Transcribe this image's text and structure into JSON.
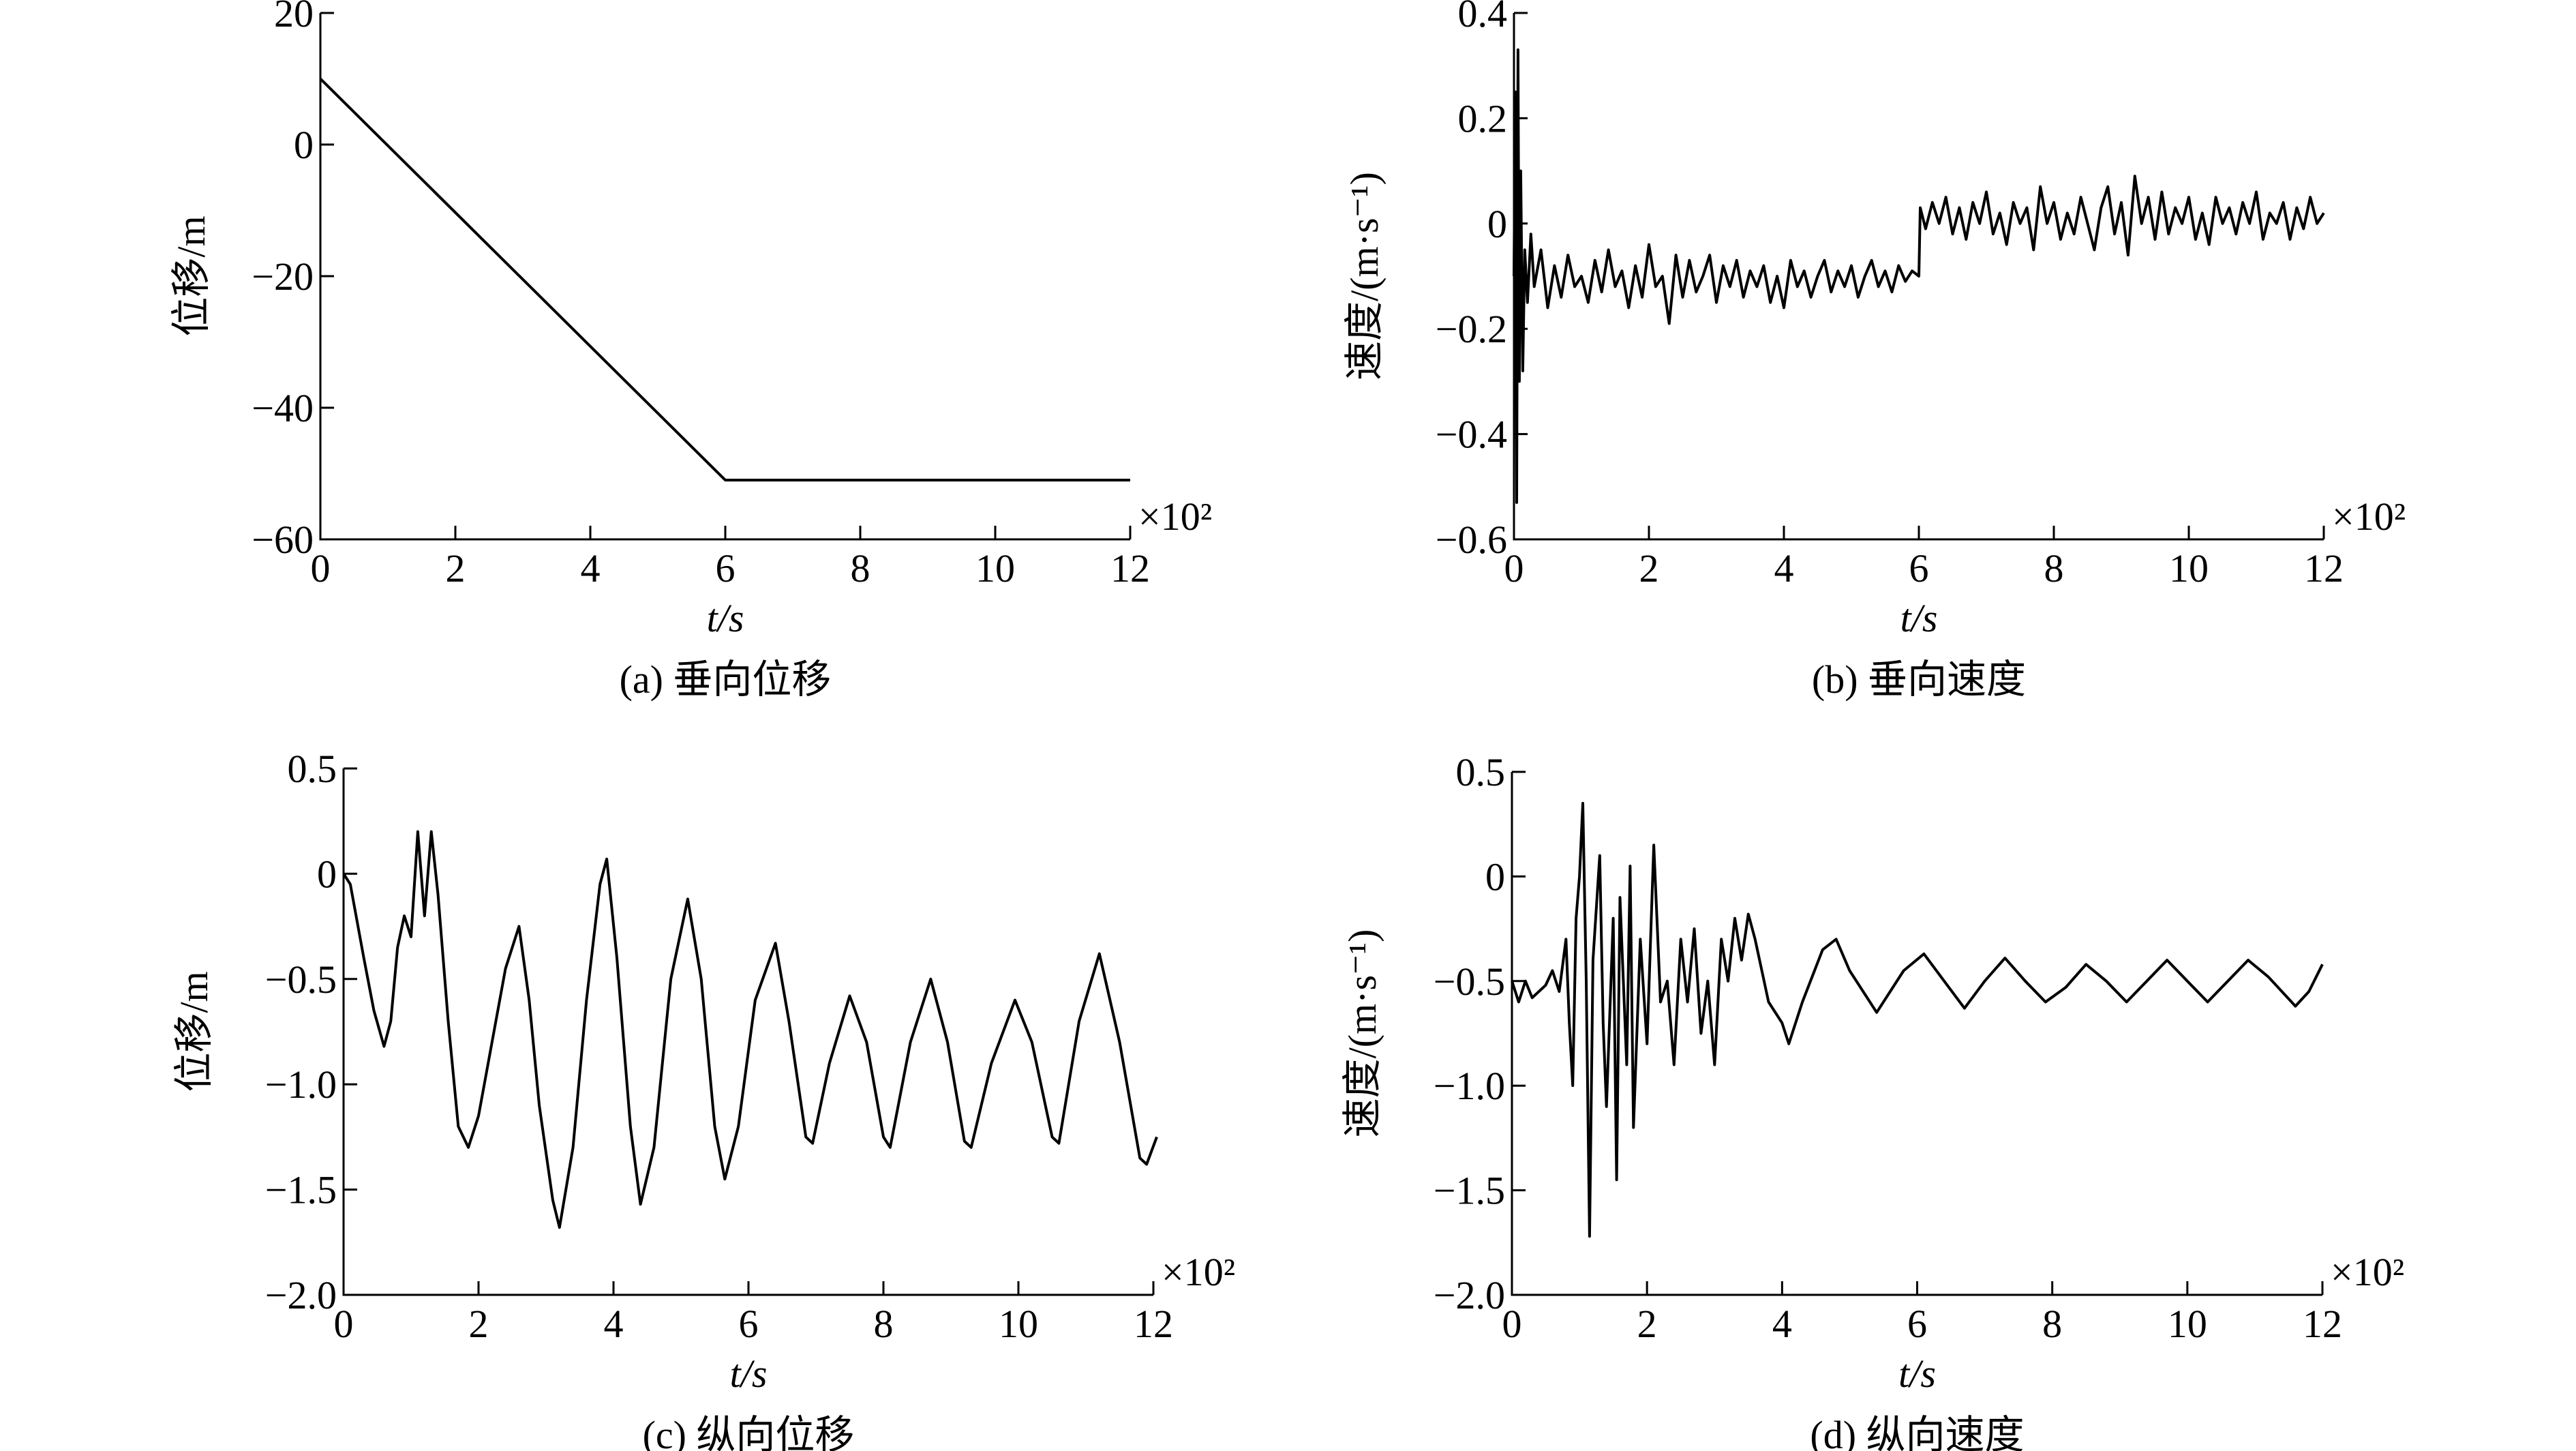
{
  "chart_data": [
    {
      "type": "line",
      "title": "(a) 垂向位移",
      "xlabel": "t/s",
      "ylabel": "位移/m",
      "x_multiplier": "×10²",
      "color": "#000000",
      "xlim": [
        0,
        12
      ],
      "ylim": [
        -60,
        20
      ],
      "xticks": [
        0,
        2,
        4,
        6,
        8,
        10,
        12
      ],
      "yticks": [
        {
          "value": -60,
          "label": "−60"
        },
        {
          "value": -40,
          "label": "−40"
        },
        {
          "value": -20,
          "label": "−20"
        },
        0,
        20
      ],
      "x": [
        0,
        6,
        12
      ],
      "values": [
        10,
        -51,
        -51
      ]
    },
    {
      "type": "line",
      "title": "(b) 垂向速度",
      "xlabel": "t/s",
      "ylabel": "速度/(m·s⁻¹)",
      "x_multiplier": "×10²",
      "color": "#000000",
      "xlim": [
        0,
        12
      ],
      "ylim": [
        -0.6,
        0.4
      ],
      "xticks": [
        0,
        2,
        4,
        6,
        8,
        10,
        12
      ],
      "yticks": [
        {
          "value": -0.6,
          "label": "−0.6"
        },
        {
          "value": -0.4,
          "label": "−0.4"
        },
        {
          "value": -0.2,
          "label": "−0.2"
        },
        0,
        0.2,
        0.4
      ],
      "x": [
        0,
        0.02,
        0.04,
        0.06,
        0.08,
        0.1,
        0.13,
        0.16,
        0.2,
        0.25,
        0.3,
        0.4,
        0.5,
        0.6,
        0.7,
        0.8,
        0.9,
        1.0,
        1.1,
        1.2,
        1.3,
        1.4,
        1.5,
        1.6,
        1.7,
        1.8,
        1.9,
        2.0,
        2.1,
        2.2,
        2.3,
        2.4,
        2.5,
        2.6,
        2.7,
        2.8,
        2.9,
        3.0,
        3.1,
        3.2,
        3.3,
        3.4,
        3.5,
        3.6,
        3.7,
        3.8,
        3.9,
        4.0,
        4.1,
        4.2,
        4.3,
        4.4,
        4.5,
        4.6,
        4.7,
        4.8,
        4.9,
        5.0,
        5.1,
        5.2,
        5.3,
        5.4,
        5.5,
        5.6,
        5.7,
        5.8,
        5.9,
        6.0,
        6.02,
        6.1,
        6.2,
        6.3,
        6.4,
        6.5,
        6.6,
        6.7,
        6.8,
        6.9,
        7.0,
        7.1,
        7.2,
        7.3,
        7.4,
        7.5,
        7.6,
        7.7,
        7.8,
        7.9,
        8.0,
        8.1,
        8.2,
        8.3,
        8.4,
        8.5,
        8.6,
        8.7,
        8.8,
        8.9,
        9.0,
        9.1,
        9.2,
        9.3,
        9.4,
        9.5,
        9.6,
        9.7,
        9.8,
        9.9,
        10.0,
        10.1,
        10.2,
        10.3,
        10.4,
        10.5,
        10.6,
        10.7,
        10.8,
        10.9,
        11.0,
        11.1,
        11.2,
        11.3,
        11.4,
        11.5,
        11.6,
        11.7,
        11.8,
        11.9,
        12.0
      ],
      "values": [
        -0.1,
        0.25,
        -0.53,
        0.33,
        -0.3,
        0.1,
        -0.28,
        -0.05,
        -0.15,
        -0.02,
        -0.12,
        -0.05,
        -0.16,
        -0.08,
        -0.14,
        -0.06,
        -0.12,
        -0.1,
        -0.15,
        -0.07,
        -0.13,
        -0.05,
        -0.12,
        -0.09,
        -0.16,
        -0.08,
        -0.14,
        -0.04,
        -0.12,
        -0.1,
        -0.19,
        -0.06,
        -0.14,
        -0.07,
        -0.13,
        -0.1,
        -0.06,
        -0.15,
        -0.08,
        -0.12,
        -0.07,
        -0.14,
        -0.09,
        -0.12,
        -0.08,
        -0.15,
        -0.1,
        -0.16,
        -0.07,
        -0.12,
        -0.09,
        -0.14,
        -0.1,
        -0.07,
        -0.13,
        -0.09,
        -0.12,
        -0.08,
        -0.14,
        -0.1,
        -0.07,
        -0.12,
        -0.09,
        -0.13,
        -0.08,
        -0.11,
        -0.09,
        -0.1,
        0.03,
        -0.01,
        0.04,
        0.0,
        0.05,
        -0.02,
        0.03,
        -0.03,
        0.04,
        0.0,
        0.06,
        -0.02,
        0.02,
        -0.04,
        0.04,
        0.0,
        0.03,
        -0.05,
        0.07,
        0.0,
        0.04,
        -0.03,
        0.02,
        -0.02,
        0.05,
        0.0,
        -0.05,
        0.03,
        0.07,
        -0.02,
        0.04,
        -0.06,
        0.09,
        0.0,
        0.05,
        -0.03,
        0.06,
        -0.02,
        0.03,
        0.0,
        0.05,
        -0.03,
        0.02,
        -0.04,
        0.05,
        0.0,
        0.03,
        -0.02,
        0.04,
        0.0,
        0.06,
        -0.03,
        0.02,
        0.0,
        0.04,
        -0.03,
        0.03,
        -0.01,
        0.05,
        0.0,
        0.02
      ]
    },
    {
      "type": "line",
      "title": "(c) 纵向位移",
      "xlabel": "t/s",
      "ylabel": "位移/m",
      "x_multiplier": "×10²",
      "color": "#000000",
      "xlim": [
        0,
        12
      ],
      "ylim": [
        -2,
        0.5
      ],
      "xticks": [
        0,
        2,
        4,
        6,
        8,
        10,
        12
      ],
      "yticks": [
        {
          "value": -2,
          "label": "−2.0"
        },
        {
          "value": -1.5,
          "label": "−1.5"
        },
        {
          "value": -1,
          "label": "−1.0"
        },
        {
          "value": -0.5,
          "label": "−0.5"
        },
        0,
        0.5
      ],
      "x": [
        0,
        0.1,
        0.3,
        0.45,
        0.6,
        0.7,
        0.8,
        0.9,
        1.0,
        1.1,
        1.2,
        1.3,
        1.4,
        1.55,
        1.7,
        1.85,
        2.0,
        2.2,
        2.4,
        2.6,
        2.75,
        2.9,
        3.1,
        3.2,
        3.4,
        3.6,
        3.8,
        3.9,
        4.05,
        4.25,
        4.4,
        4.6,
        4.85,
        5.1,
        5.3,
        5.5,
        5.65,
        5.85,
        6.1,
        6.4,
        6.6,
        6.85,
        6.95,
        7.2,
        7.5,
        7.75,
        8.0,
        8.1,
        8.4,
        8.7,
        8.95,
        9.2,
        9.3,
        9.6,
        9.95,
        10.2,
        10.5,
        10.6,
        10.9,
        11.2,
        11.5,
        11.8,
        11.9,
        12.05
      ],
      "values": [
        0,
        -0.05,
        -0.4,
        -0.65,
        -0.82,
        -0.7,
        -0.35,
        -0.2,
        -0.3,
        0.2,
        -0.2,
        0.2,
        -0.1,
        -0.7,
        -1.2,
        -1.3,
        -1.15,
        -0.8,
        -0.45,
        -0.25,
        -0.6,
        -1.1,
        -1.55,
        -1.68,
        -1.3,
        -0.6,
        -0.05,
        0.07,
        -0.4,
        -1.2,
        -1.57,
        -1.3,
        -0.5,
        -0.12,
        -0.5,
        -1.2,
        -1.45,
        -1.2,
        -0.6,
        -0.33,
        -0.7,
        -1.25,
        -1.28,
        -0.9,
        -0.58,
        -0.8,
        -1.25,
        -1.3,
        -0.8,
        -0.5,
        -0.8,
        -1.27,
        -1.3,
        -0.9,
        -0.6,
        -0.8,
        -1.25,
        -1.28,
        -0.7,
        -0.38,
        -0.8,
        -1.35,
        -1.38,
        -1.25
      ]
    },
    {
      "type": "line",
      "title": "(d) 纵向速度",
      "xlabel": "t/s",
      "ylabel": "速度/(m·s⁻¹)",
      "x_multiplier": "×10²",
      "color": "#000000",
      "xlim": [
        0,
        12
      ],
      "ylim": [
        -2,
        0.5
      ],
      "xticks": [
        0,
        2,
        4,
        6,
        8,
        10,
        12
      ],
      "yticks": [
        {
          "value": -2,
          "label": "−2.0"
        },
        {
          "value": -1.5,
          "label": "−1.5"
        },
        {
          "value": -1,
          "label": "−1.0"
        },
        {
          "value": -0.5,
          "label": "−0.5"
        },
        0,
        0.5
      ],
      "x": [
        0,
        0.1,
        0.2,
        0.3,
        0.5,
        0.6,
        0.7,
        0.8,
        0.85,
        0.9,
        0.95,
        1.0,
        1.05,
        1.1,
        1.15,
        1.2,
        1.3,
        1.35,
        1.4,
        1.5,
        1.55,
        1.6,
        1.7,
        1.75,
        1.8,
        1.9,
        2.0,
        2.1,
        2.2,
        2.3,
        2.4,
        2.5,
        2.6,
        2.7,
        2.8,
        2.9,
        3.0,
        3.1,
        3.2,
        3.3,
        3.4,
        3.5,
        3.6,
        3.8,
        4.0,
        4.1,
        4.3,
        4.6,
        4.8,
        5.0,
        5.4,
        5.8,
        6.1,
        6.4,
        6.7,
        7.0,
        7.3,
        7.6,
        7.9,
        8.2,
        8.5,
        8.8,
        9.1,
        9.4,
        9.7,
        10.0,
        10.3,
        10.6,
        10.9,
        11.2,
        11.6,
        11.8,
        12.0
      ],
      "values": [
        -0.5,
        -0.6,
        -0.5,
        -0.58,
        -0.52,
        -0.45,
        -0.55,
        -0.3,
        -0.7,
        -1.0,
        -0.2,
        0.0,
        0.35,
        -0.5,
        -1.72,
        -0.4,
        0.1,
        -0.7,
        -1.1,
        -0.2,
        -1.45,
        -0.1,
        -0.9,
        0.05,
        -1.2,
        -0.3,
        -0.8,
        0.15,
        -0.6,
        -0.5,
        -0.9,
        -0.3,
        -0.6,
        -0.25,
        -0.75,
        -0.5,
        -0.9,
        -0.3,
        -0.5,
        -0.2,
        -0.4,
        -0.18,
        -0.3,
        -0.6,
        -0.7,
        -0.8,
        -0.6,
        -0.35,
        -0.3,
        -0.45,
        -0.65,
        -0.45,
        -0.37,
        -0.5,
        -0.63,
        -0.5,
        -0.39,
        -0.5,
        -0.6,
        -0.53,
        -0.42,
        -0.5,
        -0.6,
        -0.5,
        -0.4,
        -0.5,
        -0.6,
        -0.5,
        -0.4,
        -0.48,
        -0.62,
        -0.55,
        -0.42
      ]
    }
  ]
}
